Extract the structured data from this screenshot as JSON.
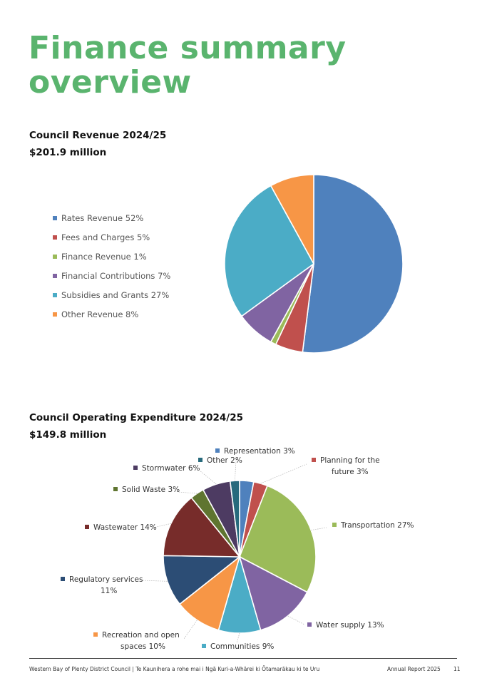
{
  "page": {
    "title_line1": "Finance summary",
    "title_line2": "overview",
    "footer_left": "Western Bay of Plenty District Council | Te Kaunihera a rohe mai i Ngā Kuri-a-Whārei ki Ōtamarākau ki te Uru",
    "footer_right": "Annual Report 2025",
    "page_number": "11"
  },
  "revenue": {
    "heading": "Council Revenue 2024/25",
    "total": "$201.9 million"
  },
  "expenditure": {
    "heading": "Council Operating Expenditure 2024/25",
    "total": "$149.8 million"
  },
  "chart_data": [
    {
      "type": "pie",
      "title": "Council Revenue 2024/25",
      "legend_placement": "left",
      "slices": [
        {
          "label": "Rates Revenue 52%",
          "value": 52,
          "color": "#4f81bd"
        },
        {
          "label": "Fees and Charges 5%",
          "value": 5,
          "color": "#c0504d"
        },
        {
          "label": "Finance Revenue 1%",
          "value": 1,
          "color": "#9bbb59"
        },
        {
          "label": "Financial Contributions 7%",
          "value": 7,
          "color": "#8064a2"
        },
        {
          "label": "Subsidies and Grants 27%",
          "value": 27,
          "color": "#4bacc6"
        },
        {
          "label": "Other Revenue 8%",
          "value": 8,
          "color": "#f79646"
        }
      ]
    },
    {
      "type": "pie",
      "title": "Council Operating Expenditure 2024/25",
      "legend_placement": "around",
      "slices": [
        {
          "label": "Representation 3%",
          "lines": [
            "Representation 3%"
          ],
          "value": 3,
          "color": "#4f81bd"
        },
        {
          "label": "Planning for the future 3%",
          "lines": [
            "Planning for the",
            "future 3%"
          ],
          "value": 3,
          "color": "#c0504d"
        },
        {
          "label": "Transportation 27%",
          "lines": [
            "Transportation 27%"
          ],
          "value": 27,
          "color": "#9bbb59"
        },
        {
          "label": "Water supply 13%",
          "lines": [
            "Water supply 13%"
          ],
          "value": 13,
          "color": "#8064a2"
        },
        {
          "label": "Communities 9%",
          "lines": [
            "Communities 9%"
          ],
          "value": 9,
          "color": "#4bacc6"
        },
        {
          "label": "Recreation and open spaces 10%",
          "lines": [
            "Recreation and open",
            "spaces 10%"
          ],
          "value": 10,
          "color": "#f79646"
        },
        {
          "label": "Regulatory services 11%",
          "lines": [
            "Regulatory services",
            "11%"
          ],
          "value": 11,
          "color": "#2c4d75"
        },
        {
          "label": "Wastewater 14%",
          "lines": [
            "Wastewater 14%"
          ],
          "value": 14,
          "color": "#772c2a"
        },
        {
          "label": "Solid Waste 3%",
          "lines": [
            "Solid Waste 3%"
          ],
          "value": 3,
          "color": "#5f7530"
        },
        {
          "label": "Stormwater 6%",
          "lines": [
            "Stormwater 6%"
          ],
          "value": 6,
          "color": "#4d3b62"
        },
        {
          "label": "Other 2%",
          "lines": [
            "Other 2%"
          ],
          "value": 2,
          "color": "#276a7c"
        }
      ]
    }
  ]
}
